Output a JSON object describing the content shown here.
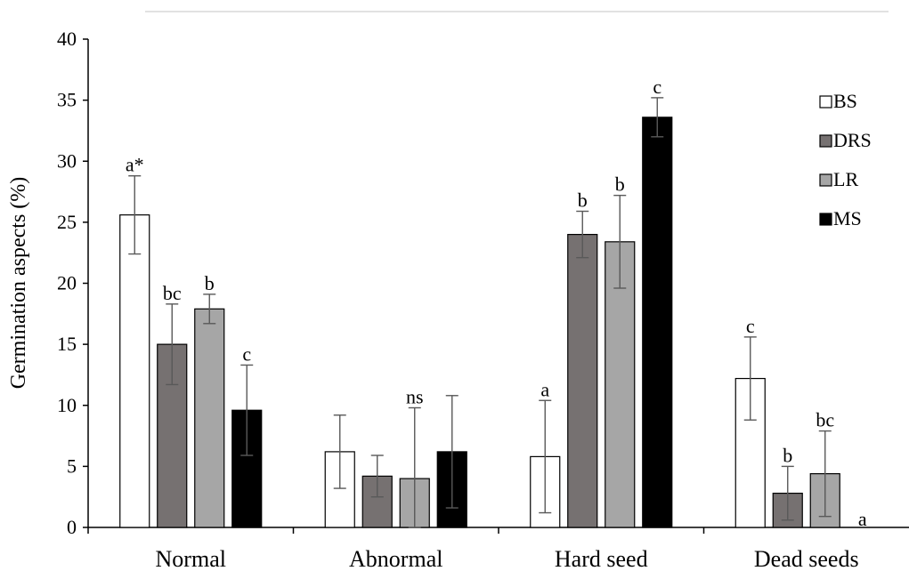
{
  "chart_data": {
    "type": "bar",
    "ylabel": "Germination  aspects (%)",
    "xlabel": "",
    "ylim": [
      0,
      40
    ],
    "ytick_step": 5,
    "yticks": [
      "0",
      "5",
      "10",
      "15",
      "20",
      "25",
      "30",
      "35",
      "40"
    ],
    "categories": [
      "Normal",
      "Abnormal",
      "Hard seed",
      "Dead seeds"
    ],
    "legend_position": "top-right",
    "grid": false,
    "series": [
      {
        "name": "BS",
        "color": "#ffffff",
        "values": [
          25.6,
          6.2,
          5.8,
          12.2
        ],
        "error": [
          3.2,
          3.0,
          4.6,
          3.4
        ],
        "labels": [
          "a*",
          "",
          "a",
          "c"
        ]
      },
      {
        "name": "DRS",
        "color": "#767171",
        "values": [
          15.0,
          4.2,
          24.0,
          2.8
        ],
        "error": [
          3.3,
          1.7,
          1.9,
          2.2
        ],
        "labels": [
          "bc",
          "",
          "b",
          "b"
        ]
      },
      {
        "name": "LR",
        "color": "#a6a6a6",
        "values": [
          17.9,
          4.0,
          23.4,
          4.4
        ],
        "error": [
          1.2,
          5.8,
          3.8,
          3.5
        ],
        "labels": [
          "b",
          "ns",
          "b",
          "bc"
        ]
      },
      {
        "name": "MS",
        "color": "#000000",
        "values": [
          9.6,
          6.2,
          33.6,
          0
        ],
        "error": [
          3.7,
          4.6,
          1.6,
          0
        ],
        "labels": [
          "c",
          "",
          "c",
          "a"
        ]
      }
    ]
  }
}
